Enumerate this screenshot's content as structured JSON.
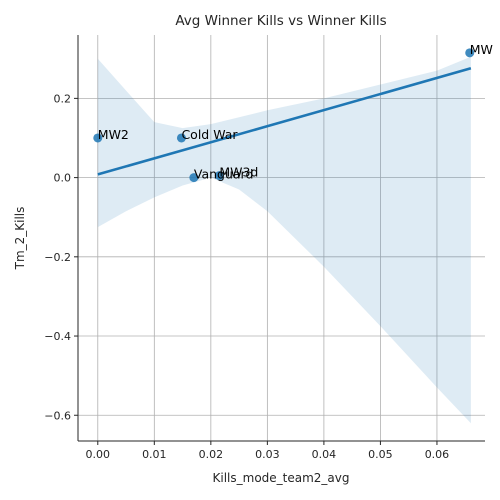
{
  "chart_data": {
    "type": "scatter",
    "title": "Avg Winner Kills vs Winner Kills",
    "xlabel": "Kills_mode_team2_avg",
    "ylabel": "Tm_2_Kills",
    "xlim": [
      -0.0035,
      0.0685
    ],
    "ylim": [
      -0.665,
      0.36
    ],
    "xticks": [
      0.0,
      0.01,
      0.02,
      0.03,
      0.04,
      0.05,
      0.06
    ],
    "xtick_labels": [
      "0.00",
      "0.01",
      "0.02",
      "0.03",
      "0.04",
      "0.05",
      "0.06"
    ],
    "yticks": [
      -0.6,
      -0.4,
      -0.2,
      0.0,
      0.2
    ],
    "ytick_labels": [
      "−0.6",
      "−0.4",
      "−0.2",
      "0.0",
      "0.2"
    ],
    "grid": true,
    "points": [
      {
        "label": "MW2",
        "x": 0.0,
        "y": 0.1
      },
      {
        "label": "Cold War",
        "x": 0.0148,
        "y": 0.1
      },
      {
        "label": "Vanguard",
        "x": 0.017,
        "y": 0.0
      },
      {
        "label": "MW3d",
        "x": 0.0215,
        "y": 0.005
      },
      {
        "label": "MW",
        "x": 0.0658,
        "y": 0.315
      }
    ],
    "regression": {
      "x": [
        0.0,
        0.066
      ],
      "y": [
        0.008,
        0.276
      ],
      "ci_upper": [
        [
          0.0,
          0.3
        ],
        [
          0.005,
          0.22
        ],
        [
          0.01,
          0.14
        ],
        [
          0.015,
          0.125
        ],
        [
          0.02,
          0.135
        ],
        [
          0.03,
          0.17
        ],
        [
          0.04,
          0.2
        ],
        [
          0.05,
          0.235
        ],
        [
          0.06,
          0.27
        ],
        [
          0.066,
          0.305
        ]
      ],
      "ci_lower": [
        [
          0.066,
          -0.62
        ],
        [
          0.06,
          -0.53
        ],
        [
          0.05,
          -0.375
        ],
        [
          0.04,
          -0.225
        ],
        [
          0.03,
          -0.085
        ],
        [
          0.025,
          -0.03
        ],
        [
          0.02,
          0.0
        ],
        [
          0.015,
          -0.02
        ],
        [
          0.01,
          -0.05
        ],
        [
          0.005,
          -0.085
        ],
        [
          0.0,
          -0.125
        ]
      ]
    },
    "colors": {
      "point": "#1f77b4",
      "line": "#1f77b4",
      "band": "#1f77b4"
    }
  }
}
